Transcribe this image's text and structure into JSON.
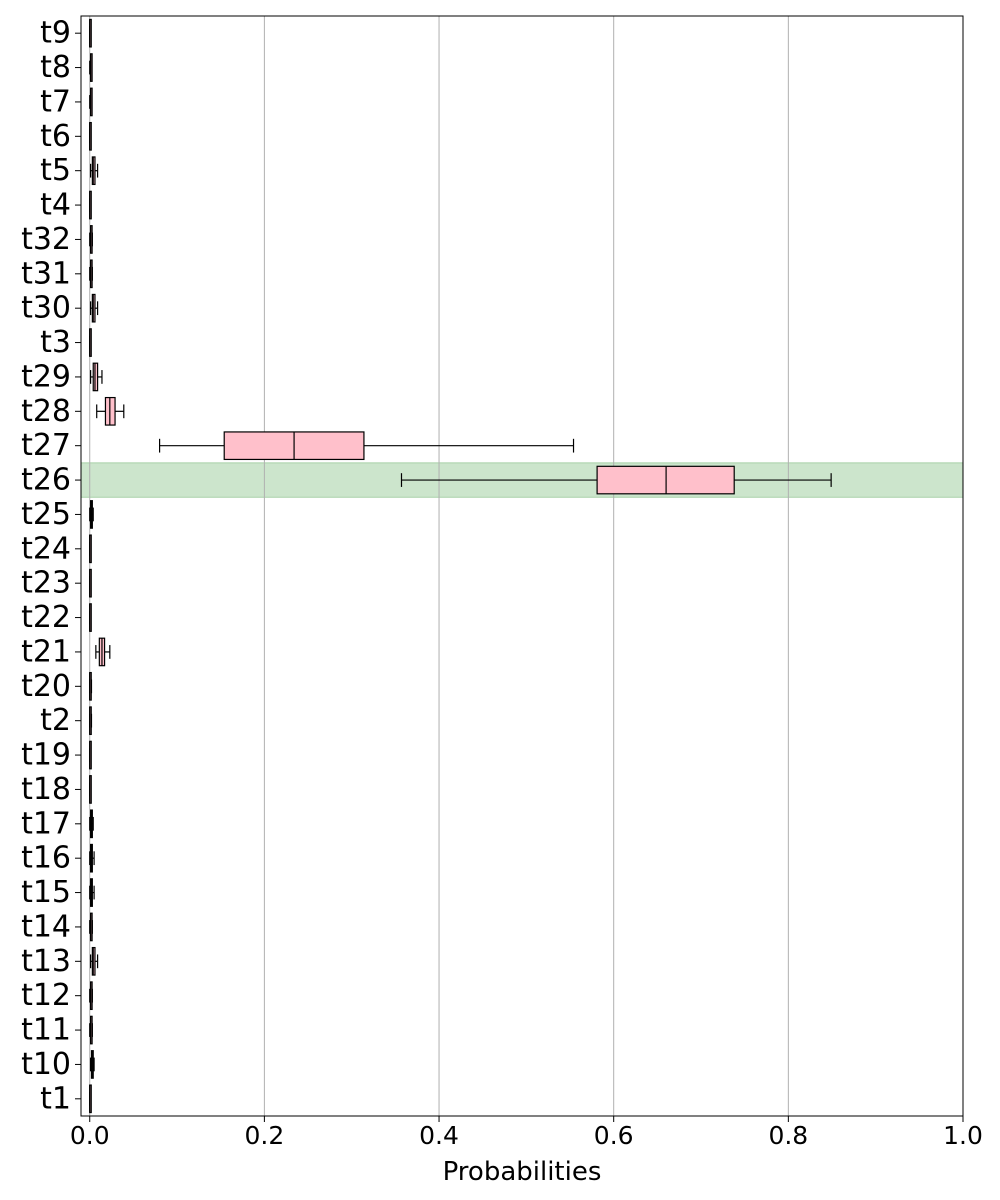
{
  "chart_data": {
    "type": "boxplot",
    "orientation": "horizontal",
    "title": "",
    "xlabel": "Probabilities",
    "ylabel": "",
    "xlim": [
      -0.01,
      1.0
    ],
    "x_ticks": [
      "0.0",
      "0.2",
      "0.4",
      "0.6",
      "0.8",
      "1.0"
    ],
    "grid": "x",
    "box_color": "#ffc0cb",
    "highlight_color": "#cce5cc",
    "highlight_category": "t26",
    "categories": [
      "t9",
      "t8",
      "t7",
      "t6",
      "t5",
      "t4",
      "t32",
      "t31",
      "t30",
      "t3",
      "t29",
      "t28",
      "t27",
      "t26",
      "t25",
      "t24",
      "t23",
      "t22",
      "t21",
      "t20",
      "t2",
      "t19",
      "t18",
      "t17",
      "t16",
      "t15",
      "t14",
      "t13",
      "t12",
      "t11",
      "t10",
      "t1"
    ],
    "boxes": [
      {
        "label": "t9",
        "whislo": 0.0,
        "q1": 0.0,
        "med": 0.0,
        "q3": 0.001,
        "whishi": 0.001
      },
      {
        "label": "t8",
        "whislo": 0.0,
        "q1": 0.001,
        "med": 0.001,
        "q3": 0.002,
        "whishi": 0.002
      },
      {
        "label": "t7",
        "whislo": 0.0,
        "q1": 0.001,
        "med": 0.001,
        "q3": 0.002,
        "whishi": 0.002
      },
      {
        "label": "t6",
        "whislo": 0.0,
        "q1": 0.0,
        "med": 0.0,
        "q3": 0.001,
        "whishi": 0.001
      },
      {
        "label": "t5",
        "whislo": 0.001,
        "q1": 0.003,
        "med": 0.004,
        "q3": 0.006,
        "whishi": 0.009
      },
      {
        "label": "t4",
        "whislo": 0.0,
        "q1": 0.0,
        "med": 0.0,
        "q3": 0.001,
        "whishi": 0.001
      },
      {
        "label": "t32",
        "whislo": 0.0,
        "q1": 0.001,
        "med": 0.001,
        "q3": 0.002,
        "whishi": 0.003
      },
      {
        "label": "t31",
        "whislo": 0.0,
        "q1": 0.001,
        "med": 0.001,
        "q3": 0.002,
        "whishi": 0.003
      },
      {
        "label": "t30",
        "whislo": 0.001,
        "q1": 0.003,
        "med": 0.004,
        "q3": 0.006,
        "whishi": 0.009
      },
      {
        "label": "t3",
        "whislo": 0.0,
        "q1": 0.0,
        "med": 0.0,
        "q3": 0.001,
        "whishi": 0.001
      },
      {
        "label": "t29",
        "whislo": 0.001,
        "q1": 0.004,
        "med": 0.006,
        "q3": 0.009,
        "whishi": 0.014
      },
      {
        "label": "t28",
        "whislo": 0.008,
        "q1": 0.018,
        "med": 0.023,
        "q3": 0.029,
        "whishi": 0.039
      },
      {
        "label": "t27",
        "whislo": 0.08,
        "q1": 0.154,
        "med": 0.234,
        "q3": 0.314,
        "whishi": 0.554
      },
      {
        "label": "t26",
        "whislo": 0.357,
        "q1": 0.581,
        "med": 0.66,
        "q3": 0.738,
        "whishi": 0.849
      },
      {
        "label": "t25",
        "whislo": 0.0,
        "q1": 0.001,
        "med": 0.002,
        "q3": 0.003,
        "whishi": 0.004
      },
      {
        "label": "t24",
        "whislo": 0.0,
        "q1": 0.0,
        "med": 0.0,
        "q3": 0.001,
        "whishi": 0.001
      },
      {
        "label": "t23",
        "whislo": 0.0,
        "q1": 0.0,
        "med": 0.0,
        "q3": 0.001,
        "whishi": 0.001
      },
      {
        "label": "t22",
        "whislo": 0.0,
        "q1": 0.0,
        "med": 0.0,
        "q3": 0.001,
        "whishi": 0.001
      },
      {
        "label": "t21",
        "whislo": 0.007,
        "q1": 0.011,
        "med": 0.014,
        "q3": 0.017,
        "whishi": 0.023
      },
      {
        "label": "t20",
        "whislo": 0.0,
        "q1": 0.0,
        "med": 0.0,
        "q3": 0.001,
        "whishi": 0.002
      },
      {
        "label": "t2",
        "whislo": 0.0,
        "q1": 0.0,
        "med": 0.0,
        "q3": 0.001,
        "whishi": 0.002
      },
      {
        "label": "t19",
        "whislo": 0.0,
        "q1": 0.0,
        "med": 0.0,
        "q3": 0.001,
        "whishi": 0.001
      },
      {
        "label": "t18",
        "whislo": 0.0,
        "q1": 0.0,
        "med": 0.0,
        "q3": 0.001,
        "whishi": 0.001
      },
      {
        "label": "t17",
        "whislo": 0.0,
        "q1": 0.001,
        "med": 0.002,
        "q3": 0.003,
        "whishi": 0.004
      },
      {
        "label": "t16",
        "whislo": 0.0,
        "q1": 0.001,
        "med": 0.002,
        "q3": 0.003,
        "whishi": 0.005
      },
      {
        "label": "t15",
        "whislo": 0.0,
        "q1": 0.001,
        "med": 0.002,
        "q3": 0.003,
        "whishi": 0.005
      },
      {
        "label": "t14",
        "whislo": 0.0,
        "q1": 0.001,
        "med": 0.001,
        "q3": 0.002,
        "whishi": 0.003
      },
      {
        "label": "t13",
        "whislo": 0.001,
        "q1": 0.003,
        "med": 0.004,
        "q3": 0.006,
        "whishi": 0.009
      },
      {
        "label": "t12",
        "whislo": 0.0,
        "q1": 0.001,
        "med": 0.001,
        "q3": 0.002,
        "whishi": 0.003
      },
      {
        "label": "t11",
        "whislo": 0.0,
        "q1": 0.001,
        "med": 0.001,
        "q3": 0.002,
        "whishi": 0.003
      },
      {
        "label": "t10",
        "whislo": 0.001,
        "q1": 0.002,
        "med": 0.003,
        "q3": 0.004,
        "whishi": 0.005
      },
      {
        "label": "t1",
        "whislo": 0.0,
        "q1": 0.0,
        "med": 0.0,
        "q3": 0.001,
        "whishi": 0.001
      }
    ]
  }
}
